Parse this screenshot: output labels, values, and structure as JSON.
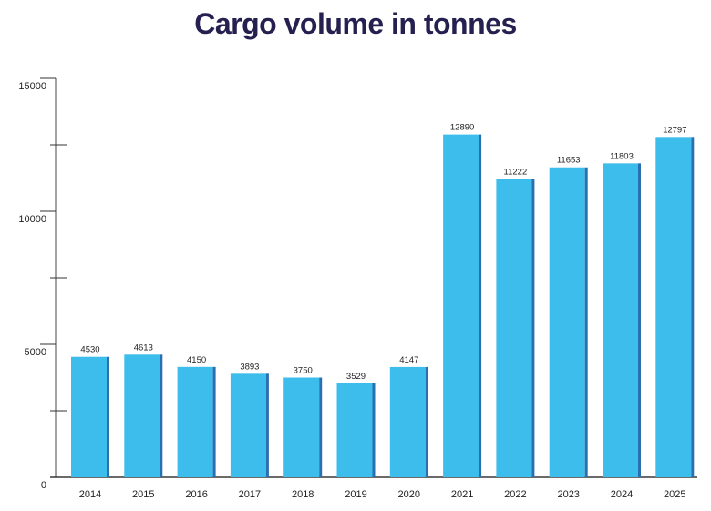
{
  "chart_data": {
    "type": "bar",
    "title": "Cargo volume in tonnes",
    "xlabel": "",
    "ylabel": "",
    "categories": [
      "2014",
      "2015",
      "2016",
      "2017",
      "2018",
      "2019",
      "2020",
      "2021",
      "2022",
      "2023",
      "2024",
      "2025"
    ],
    "values": [
      4530,
      4613,
      4150,
      3893,
      3750,
      3529,
      4147,
      12890,
      11222,
      11653,
      11803,
      12797
    ],
    "ylim": [
      0,
      15000
    ],
    "yticks": [
      0,
      5000,
      10000,
      15000
    ],
    "grid": false,
    "legend": "none",
    "colors": {
      "bar": "#3dbdec",
      "bar_edge": "#2a6fb0",
      "title": "#25204f",
      "axis": "#333333"
    }
  }
}
